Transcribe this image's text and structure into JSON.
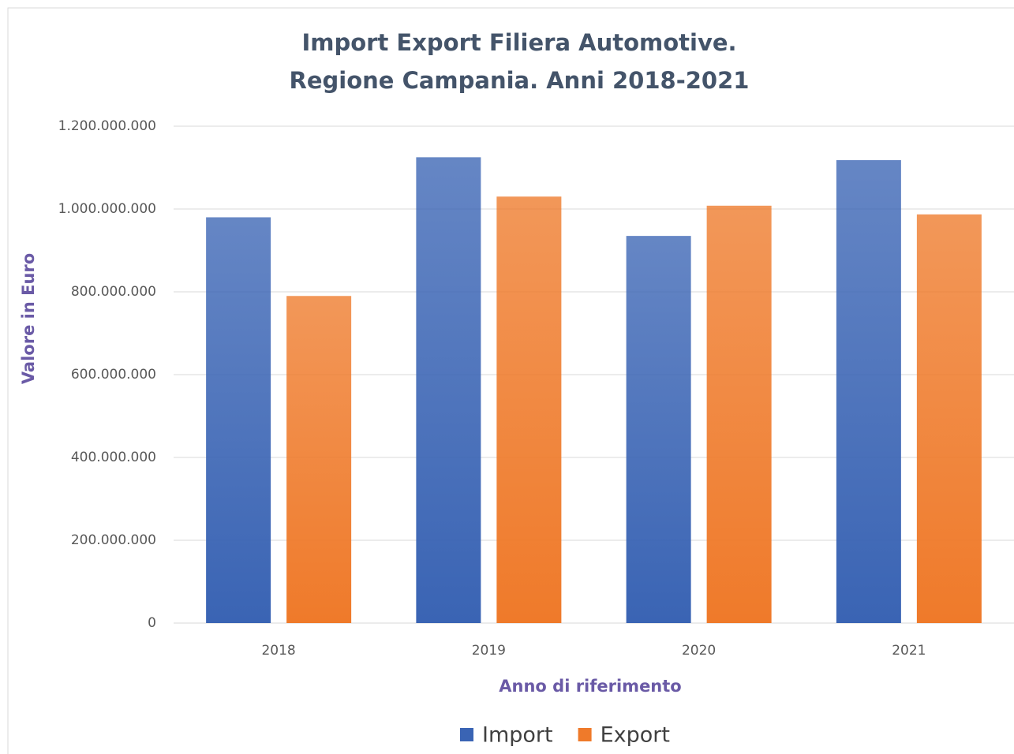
{
  "chart_data": {
    "type": "bar",
    "title": [
      "Import Export Filiera Automotive.",
      "Regione Campania. Anni 2018-2021"
    ],
    "x_label": "Anno di riferimento",
    "y_label": "Valore in Euro",
    "categories": [
      "2018",
      "2019",
      "2020",
      "2021"
    ],
    "series": [
      {
        "name": "Import",
        "color": "#3a64b4",
        "values": [
          980000000,
          1125000000,
          935000000,
          1118000000
        ]
      },
      {
        "name": "Export",
        "color": "#ef7a2a",
        "values": [
          790000000,
          1030000000,
          1008000000,
          987000000
        ]
      }
    ],
    "ylim": [
      0,
      1200000000
    ],
    "yticks": [
      0,
      {
        "value": 200000000,
        "label": "200.000.000"
      },
      {
        "value": 400000000,
        "label": "400.000.000"
      },
      {
        "value": 600000000,
        "label": "600.000.000"
      },
      {
        "value": 800000000,
        "label": "800.000.000"
      },
      {
        "value": 1000000000,
        "label": "1.000.000.000"
      },
      {
        "value": 1200000000,
        "label": "1.200.000.000"
      }
    ],
    "grid": true,
    "legend": "bottom"
  }
}
